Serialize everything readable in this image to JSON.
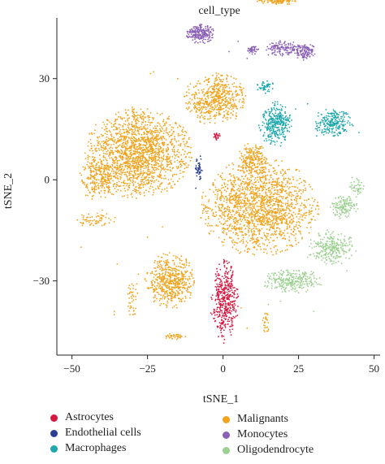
{
  "chart_data": {
    "type": "scatter",
    "title": "cell_type",
    "xlabel": "tSNE_1",
    "ylabel": "tSNE_2",
    "xlim": [
      -55,
      52
    ],
    "ylim": [
      -52,
      48
    ],
    "xticks": [
      -50,
      -25,
      0,
      25,
      50
    ],
    "yticks": [
      -30,
      0,
      30
    ],
    "xtick_labels": [
      "−50",
      "−25",
      "0",
      "25",
      "50"
    ],
    "ytick_labels": [
      "−30",
      "0",
      "30"
    ],
    "grid": false,
    "legend_position": "bottom",
    "series": [
      {
        "name": "Astrocytes",
        "color": "#d6173f",
        "clusters": [
          {
            "cx": 0.5,
            "cy": -36,
            "rx": 4.5,
            "ry": 12,
            "n": 420
          },
          {
            "cx": -2,
            "cy": 13,
            "rx": 1.2,
            "ry": 1.2,
            "n": 25
          }
        ],
        "points": [
          [
            -1.5,
            -46.5
          ],
          [
            2,
            -24.5
          ],
          [
            -3,
            -39
          ],
          [
            3,
            -31
          ]
        ]
      },
      {
        "name": "Endothelial cells",
        "color": "#2b3f91",
        "clusters": [
          {
            "cx": -8,
            "cy": 3,
            "rx": 1.3,
            "ry": 4,
            "n": 45
          }
        ],
        "points": [
          [
            -9,
            -2.5
          ],
          [
            -7.5,
            7
          ]
        ]
      },
      {
        "name": "Macrophages",
        "color": "#1fa8ac",
        "clusters": [
          {
            "cx": 17.5,
            "cy": 16.5,
            "rx": 5.5,
            "ry": 6.5,
            "n": 330
          },
          {
            "cx": 36.5,
            "cy": 17,
            "rx": 6.5,
            "ry": 4,
            "n": 230
          },
          {
            "cx": 14,
            "cy": 27.5,
            "rx": 3,
            "ry": 1.8,
            "n": 50
          }
        ],
        "points": [
          [
            24,
            21
          ],
          [
            28,
            22.5
          ],
          [
            31,
            13
          ],
          [
            45,
            14
          ]
        ]
      },
      {
        "name": "Malignants",
        "color": "#f2a31c",
        "clusters": [
          {
            "cx": -28,
            "cy": 8,
            "rx": 17,
            "ry": 13,
            "n": 1700
          },
          {
            "cx": -41,
            "cy": 0,
            "rx": 7,
            "ry": 6,
            "n": 220
          },
          {
            "cx": 12,
            "cy": -8,
            "rx": 19,
            "ry": 14,
            "n": 1600
          },
          {
            "cx": -2.5,
            "cy": 24,
            "rx": 10,
            "ry": 7.5,
            "n": 550
          },
          {
            "cx": -17.5,
            "cy": -30,
            "rx": 8,
            "ry": 8,
            "n": 520
          },
          {
            "cx": 10,
            "cy": 6,
            "rx": 5,
            "ry": 5,
            "n": 200
          },
          {
            "cx": 18.5,
            "cy": 53,
            "rx": 7,
            "ry": 1.1,
            "n": 110
          },
          {
            "cx": -16,
            "cy": -46.5,
            "rx": 4,
            "ry": 1,
            "n": 40
          },
          {
            "cx": -42,
            "cy": -12,
            "rx": 7,
            "ry": 2.5,
            "n": 60
          },
          {
            "cx": 14,
            "cy": -42,
            "rx": 1.5,
            "ry": 3.5,
            "n": 25
          },
          {
            "cx": -30,
            "cy": -35,
            "rx": 2,
            "ry": 6,
            "n": 40
          }
        ],
        "points": [
          [
            -25,
            -17
          ],
          [
            -20,
            -14
          ],
          [
            -35,
            -25
          ],
          [
            -47,
            -20
          ],
          [
            -40,
            -9
          ],
          [
            5,
            -21
          ],
          [
            11,
            -19
          ],
          [
            24,
            -18
          ],
          [
            -23,
            13
          ],
          [
            -15,
            30
          ],
          [
            -12,
            26
          ],
          [
            6,
            -38
          ],
          [
            8,
            -44
          ],
          [
            -36,
            -40
          ],
          [
            -36,
            -39
          ],
          [
            -28,
            -28
          ],
          [
            -25,
            21
          ],
          [
            -24,
            31.5
          ],
          [
            -23,
            32
          ]
        ]
      },
      {
        "name": "Monocytes",
        "color": "#8b61b7",
        "clusters": [
          {
            "cx": -7.5,
            "cy": 43.5,
            "rx": 4.5,
            "ry": 3,
            "n": 220
          },
          {
            "cx": 20,
            "cy": 39,
            "rx": 5.5,
            "ry": 2.2,
            "n": 130
          },
          {
            "cx": 27,
            "cy": 38,
            "rx": 3.5,
            "ry": 2.5,
            "n": 110
          },
          {
            "cx": 10,
            "cy": 38.5,
            "rx": 2,
            "ry": 1.3,
            "n": 45
          }
        ],
        "points": [
          [
            2,
            38
          ],
          [
            5,
            41
          ],
          [
            8,
            36
          ],
          [
            15,
            37
          ]
        ]
      },
      {
        "name": "Oligodendrocyte",
        "color": "#9dd191",
        "clusters": [
          {
            "cx": 23,
            "cy": -30,
            "rx": 10,
            "ry": 3.5,
            "n": 260
          },
          {
            "cx": 36,
            "cy": -20,
            "rx": 8,
            "ry": 5,
            "n": 260
          },
          {
            "cx": 40,
            "cy": -8,
            "rx": 4.5,
            "ry": 3.5,
            "n": 130
          },
          {
            "cx": 44,
            "cy": -2,
            "rx": 2.5,
            "ry": 3,
            "n": 40
          }
        ],
        "points": [
          [
            15,
            -37
          ],
          [
            19,
            -36
          ],
          [
            30,
            -39
          ],
          [
            41,
            -27
          ],
          [
            28,
            -23
          ]
        ]
      }
    ]
  },
  "legend": [
    {
      "label": "Astrocytes",
      "color": "#d6173f"
    },
    {
      "label": "Endothelial cells",
      "color": "#2b3f91"
    },
    {
      "label": "Macrophages",
      "color": "#1fa8ac"
    },
    {
      "label": "Malignants",
      "color": "#f2a31c"
    },
    {
      "label": "Monocytes",
      "color": "#8b61b7"
    },
    {
      "label": "Oligodendrocyte",
      "color": "#9dd191"
    }
  ]
}
